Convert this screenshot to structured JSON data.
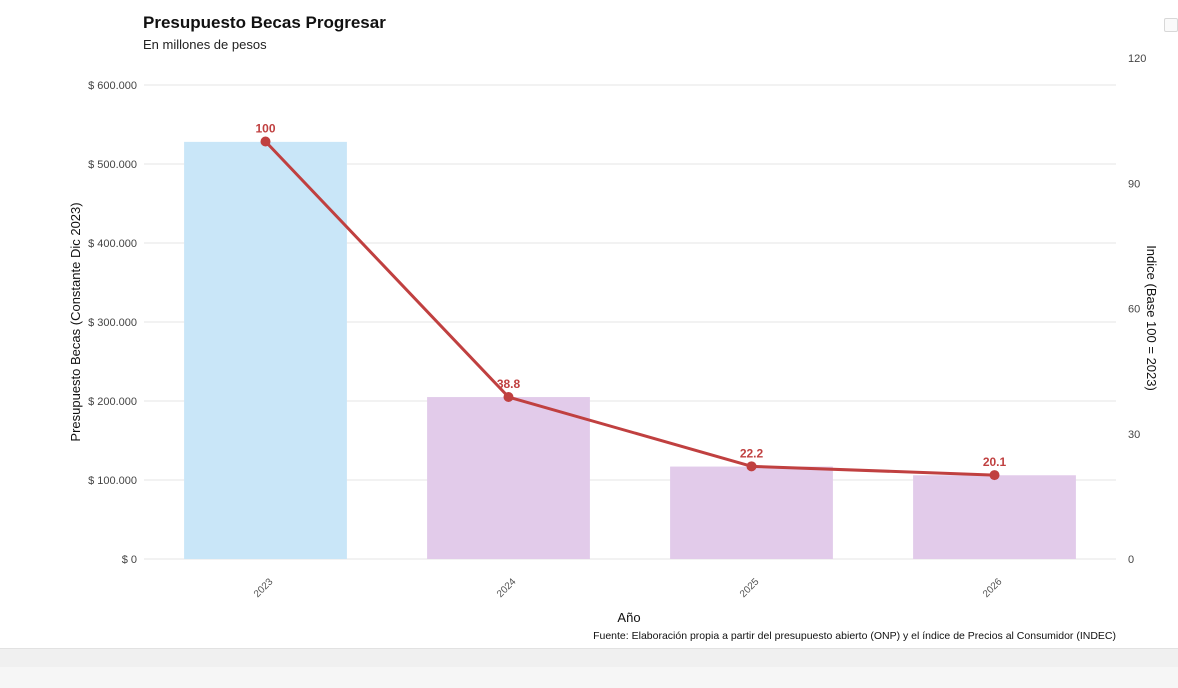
{
  "chart_data": {
    "type": "bar",
    "title": "Presupuesto Becas Progresar",
    "subtitle": "En millones de pesos",
    "xlabel": "Año",
    "ylabel": "Presupuesto Becas (Constante Dic 2023)",
    "ylabel_right": "Indice (Base 100 = 2023)",
    "caption": "Fuente: Elaboración propia a partir del presupuesto abierto (ONP) y el índice de Precios al Consumidor (INDEC)",
    "categories": [
      "2023",
      "2024",
      "2025",
      "2026"
    ],
    "bar_values": [
      528000,
      205000,
      117000,
      106000
    ],
    "bar_colors": [
      "#c9e6f8",
      "#e2cbea",
      "#e2cbea",
      "#e2cbea"
    ],
    "ylim": [
      0,
      600000
    ],
    "yticks": [
      0,
      100000,
      200000,
      300000,
      400000,
      500000,
      600000
    ],
    "ytick_labels": [
      "$ 0",
      "$ 100.000",
      "$ 200.000",
      "$ 300.000",
      "$ 400.000",
      "$ 500.000",
      "$ 600.000"
    ],
    "y2lim": [
      0,
      120
    ],
    "y2ticks": [
      0,
      30,
      60,
      90,
      120
    ],
    "y2tick_labels": [
      "0",
      "30",
      "60",
      "90",
      "120"
    ],
    "line_series": {
      "values": [
        100,
        38.8,
        22.2,
        20.1
      ],
      "labels": [
        "100",
        "38.8",
        "22.2",
        "20.1"
      ],
      "color": "#c04040"
    },
    "grid": true,
    "grid_color": "#e6e6e6"
  }
}
